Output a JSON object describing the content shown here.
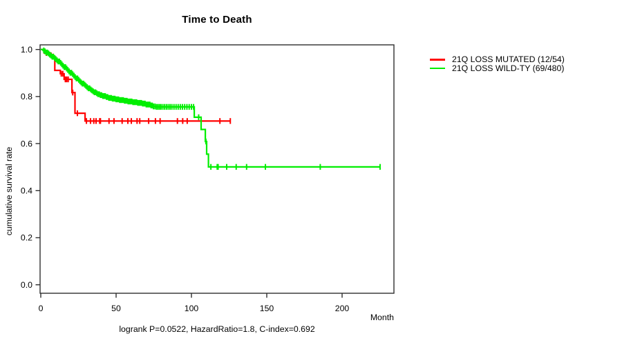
{
  "header": {
    "title": "Time to Death"
  },
  "axes": {
    "x_label": "Month",
    "y_label": "cumulative survival rate"
  },
  "footer": {
    "stats": "logrank P=0.0522, HazardRatio=1.8, C-index=0.692"
  },
  "legend": {
    "items": [
      {
        "label": "21Q LOSS MUTATED (12/54)",
        "color": "#ff0000"
      },
      {
        "label": "21Q LOSS WILD-TY (69/480)",
        "color": "#00ee00"
      }
    ]
  },
  "chart_data": {
    "type": "line",
    "subtype": "kaplan-meier-step",
    "title": "Time to Death",
    "xlabel": "Month",
    "ylabel": "cumulative survival rate",
    "xlim": [
      0,
      234
    ],
    "ylim": [
      0.0,
      1.0
    ],
    "xticks": [
      0,
      50,
      100,
      150,
      200
    ],
    "yticks": [
      0.0,
      0.2,
      0.4,
      0.6,
      0.8,
      1.0
    ],
    "grid": false,
    "legend_position": "right-outside",
    "annotation": "logrank P=0.0522, HazardRatio=1.8, C-index=0.692",
    "series": [
      {
        "name": "21Q LOSS MUTATED (12/54)",
        "color": "#ff0000",
        "events": 12,
        "n": 54,
        "end_month": 125.8,
        "steps": [
          [
            0,
            1.0
          ],
          [
            2.3,
            0.985
          ],
          [
            6.0,
            0.975
          ],
          [
            8.0,
            0.97
          ],
          [
            9.3,
            0.911
          ],
          [
            13.0,
            0.897
          ],
          [
            15.5,
            0.873
          ],
          [
            20.7,
            0.817
          ],
          [
            22.7,
            0.729
          ],
          [
            29.4,
            0.696
          ]
        ],
        "censor_months": [
          3.7,
          6.9,
          8.2,
          13.6,
          14.6,
          16.3,
          17.2,
          18.2,
          21.2,
          24.3,
          30.3,
          33.0,
          35.2,
          36.7,
          39.1,
          39.6,
          45.3,
          48.6,
          54.0,
          57.8,
          60.1,
          63.9,
          65.7,
          71.6,
          76.1,
          79.2,
          90.7,
          94.2,
          97.2,
          118.9,
          125.8
        ]
      },
      {
        "name": "21Q LOSS WILD-TY (69/480)",
        "color": "#00ee00",
        "events": 69,
        "n": 480,
        "end_month": 225.2,
        "steps": [
          [
            0,
            1.0
          ],
          [
            1.5,
            0.996
          ],
          [
            2.5,
            0.992
          ],
          [
            3.5,
            0.987
          ],
          [
            4.5,
            0.983
          ],
          [
            5.5,
            0.978
          ],
          [
            6.5,
            0.974
          ],
          [
            7.5,
            0.969
          ],
          [
            8.5,
            0.964
          ],
          [
            9.5,
            0.959
          ],
          [
            10.5,
            0.954
          ],
          [
            11.5,
            0.949
          ],
          [
            12.5,
            0.943
          ],
          [
            13.5,
            0.937
          ],
          [
            14.5,
            0.931
          ],
          [
            15.5,
            0.925
          ],
          [
            16.5,
            0.919
          ],
          [
            17.5,
            0.913
          ],
          [
            18.5,
            0.907
          ],
          [
            19.5,
            0.901
          ],
          [
            20.5,
            0.895
          ],
          [
            21.5,
            0.889
          ],
          [
            22.5,
            0.883
          ],
          [
            23.5,
            0.877
          ],
          [
            24.5,
            0.871
          ],
          [
            25.5,
            0.865
          ],
          [
            26.5,
            0.86
          ],
          [
            27.5,
            0.855
          ],
          [
            28.5,
            0.85
          ],
          [
            29.5,
            0.845
          ],
          [
            30.5,
            0.84
          ],
          [
            31.5,
            0.835
          ],
          [
            32.5,
            0.83
          ],
          [
            33.5,
            0.826
          ],
          [
            34.5,
            0.822
          ],
          [
            35.5,
            0.818
          ],
          [
            36.5,
            0.814
          ],
          [
            38.0,
            0.81
          ],
          [
            39.5,
            0.806
          ],
          [
            41.0,
            0.802
          ],
          [
            43.0,
            0.798
          ],
          [
            45.0,
            0.794
          ],
          [
            47.0,
            0.791
          ],
          [
            49.5,
            0.788
          ],
          [
            52.0,
            0.785
          ],
          [
            55.0,
            0.782
          ],
          [
            58.0,
            0.779
          ],
          [
            61.0,
            0.776
          ],
          [
            64.0,
            0.773
          ],
          [
            67.0,
            0.77
          ],
          [
            70.0,
            0.766
          ],
          [
            72.5,
            0.762
          ],
          [
            74.5,
            0.758
          ],
          [
            76.0,
            0.756
          ],
          [
            101.9,
            0.712
          ],
          [
            106.4,
            0.66
          ],
          [
            109.2,
            0.609
          ],
          [
            110.1,
            0.555
          ],
          [
            111.3,
            0.501
          ]
        ],
        "censor_months": [
          2.0,
          2.8,
          3.6,
          4.4,
          5.2,
          6.0,
          6.8,
          7.6,
          8.4,
          9.2,
          10.0,
          10.8,
          11.6,
          12.4,
          13.2,
          14.0,
          14.8,
          15.6,
          16.4,
          17.2,
          18.0,
          18.8,
          19.6,
          20.4,
          21.2,
          22.0,
          22.8,
          23.6,
          24.4,
          25.2,
          26.0,
          26.8,
          27.6,
          28.4,
          29.2,
          30.0,
          30.8,
          31.6,
          32.4,
          33.2,
          34.0,
          34.8,
          35.6,
          36.4,
          37.2,
          38.0,
          38.8,
          39.6,
          40.4,
          41.2,
          42.0,
          42.8,
          43.6,
          44.4,
          45.2,
          46.0,
          46.8,
          47.6,
          48.4,
          49.2,
          50.0,
          50.8,
          51.6,
          52.4,
          53.2,
          54.0,
          54.8,
          55.6,
          56.4,
          57.2,
          58.0,
          58.8,
          59.6,
          60.4,
          61.2,
          62.0,
          62.8,
          63.6,
          64.4,
          65.2,
          66.0,
          66.8,
          67.6,
          68.4,
          69.2,
          70.0,
          70.8,
          71.6,
          72.4,
          73.2,
          74.0,
          74.8,
          75.8,
          76.8,
          77.8,
          78.8,
          79.8,
          81.0,
          82.2,
          83.4,
          84.6,
          85.8,
          87.0,
          88.4,
          89.8,
          91.2,
          92.6,
          94.0,
          95.5,
          97.0,
          98.5,
          100.0,
          101.4,
          104.8,
          109.6,
          112.9,
          117.1,
          117.7,
          123.4,
          129.7,
          136.6,
          149.1,
          185.5,
          225.2
        ]
      }
    ]
  }
}
